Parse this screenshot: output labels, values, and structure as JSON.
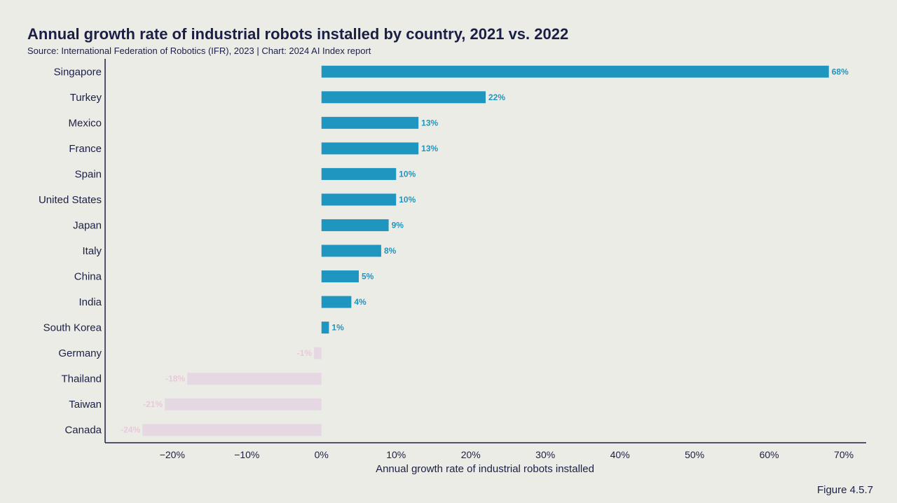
{
  "figure_label": "Figure 4.5.7",
  "chart_data": {
    "type": "bar",
    "orientation": "horizontal",
    "title": "Annual growth rate of industrial robots installed by country, 2021 vs. 2022",
    "subtitle": "Source: International Federation of Robotics (IFR), 2023 | Chart: 2024 AI Index report",
    "xlabel": "Annual growth rate of industrial robots installed",
    "ylabel": "",
    "xlim": [
      -29,
      73
    ],
    "xticks": [
      -20,
      -10,
      0,
      10,
      20,
      30,
      40,
      50,
      60,
      70
    ],
    "xtick_labels": [
      "−20%",
      "−10%",
      "0%",
      "10%",
      "20%",
      "30%",
      "40%",
      "50%",
      "60%",
      "70%"
    ],
    "categories": [
      "Singapore",
      "Turkey",
      "Mexico",
      "France",
      "Spain",
      "United States",
      "Japan",
      "Italy",
      "China",
      "India",
      "South Korea",
      "Germany",
      "Thailand",
      "Taiwan",
      "Canada"
    ],
    "values": [
      68,
      22,
      13,
      13,
      10,
      10,
      9,
      8,
      5,
      4,
      1,
      -1,
      -18,
      -21,
      -24
    ],
    "value_labels": [
      "68%",
      "22%",
      "13%",
      "13%",
      "10%",
      "10%",
      "9%",
      "8%",
      "5%",
      "4%",
      "1%",
      "-1%",
      "-18%",
      "-21%",
      "-24%"
    ],
    "colors": {
      "positive": "#1e96c0",
      "negative": "#e5d8e3",
      "negative_label": "#eac8dc",
      "axis": "#1b1f45"
    },
    "grid": false
  }
}
